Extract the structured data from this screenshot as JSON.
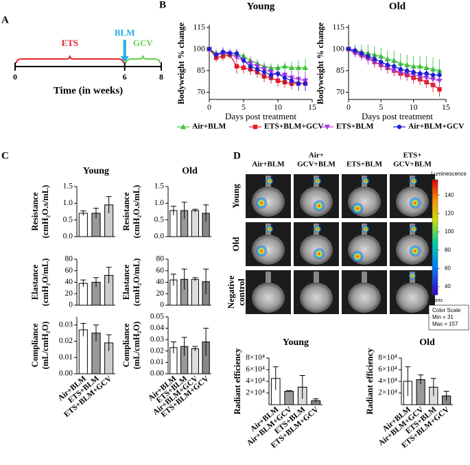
{
  "panel_labels": [
    "A",
    "B",
    "C",
    "D"
  ],
  "timeline": {
    "xlim": [
      0,
      8
    ],
    "ticks": [
      0,
      6,
      8
    ],
    "xlabel": "Time (in weeks)",
    "phases": [
      {
        "name": "ETS",
        "start": 0,
        "end": 6,
        "color": "#e3262b"
      },
      {
        "name": "GCV",
        "start": 6,
        "end": 8,
        "color": "#5fcf4a"
      }
    ],
    "arrow": {
      "name": "BLM",
      "at": 6,
      "color": "#29abe2"
    }
  },
  "imaging": {
    "columns": [
      [
        "Air+BLM"
      ],
      [
        "Air+",
        "GCV+BLM"
      ],
      [
        "ETS+BLM"
      ],
      [
        "ETS+",
        "GCV+BLM"
      ]
    ],
    "rows": [
      [
        "Young"
      ],
      [
        "Old"
      ],
      [
        "Negative",
        "control"
      ]
    ],
    "colorbar": {
      "title": "Luminescence",
      "unit": "Counts",
      "ticks": [
        40,
        60,
        80,
        100,
        120,
        140
      ],
      "label": "Color Scale",
      "min": {
        "value": 31,
        "label": "Min = 31"
      },
      "max": {
        "value": 157,
        "label": "Max = 157"
      }
    }
  },
  "chart_data": [
    {
      "type": "line",
      "title": "Young",
      "xlabel": "Days post treatment",
      "ylabel": "Bodyweight % change",
      "x": [
        0,
        1,
        2,
        3,
        4,
        5,
        6,
        7,
        8,
        9,
        10,
        11,
        12,
        13,
        14
      ],
      "xlim": [
        0,
        15
      ],
      "xticks": [
        0,
        5,
        10,
        15
      ],
      "ylim": [
        65,
        115
      ],
      "yticks": [
        70,
        85,
        100,
        115
      ],
      "series": [
        {
          "name": "Air+BLM",
          "color": "#3ec63e",
          "marker": "triangle-up",
          "values": [
            100,
            97,
            96,
            97,
            97,
            95,
            92,
            90,
            88,
            87,
            87,
            88,
            87,
            87,
            87
          ],
          "errors": [
            1,
            3,
            3,
            3,
            3,
            3,
            3,
            3,
            3,
            3,
            3,
            3,
            4,
            5,
            6
          ]
        },
        {
          "name": "ETS+BLM+GCV",
          "color": "#e31a1c",
          "marker": "square",
          "values": [
            100,
            94,
            95,
            96,
            88,
            87,
            86,
            84,
            81,
            80,
            78,
            77,
            76,
            76,
            76
          ],
          "errors": [
            1,
            3,
            3,
            3,
            5,
            4,
            4,
            4,
            4,
            4,
            4,
            4,
            4,
            5,
            5
          ]
        },
        {
          "name": "ETS+BLM",
          "color": "#b040e0",
          "marker": "triangle-down",
          "values": [
            100,
            96,
            97,
            97,
            94,
            92,
            90,
            88,
            86,
            84,
            82,
            82,
            80,
            79,
            78
          ],
          "errors": [
            1,
            3,
            3,
            3,
            4,
            4,
            4,
            4,
            4,
            4,
            4,
            4,
            5,
            5,
            6
          ]
        },
        {
          "name": "Air+BLM+GCV",
          "color": "#1f1fd6",
          "marker": "circle",
          "values": [
            100,
            96,
            98,
            97,
            97,
            92,
            88,
            86,
            84,
            82,
            83,
            80,
            78,
            76,
            76
          ],
          "errors": [
            1,
            3,
            3,
            3,
            3,
            4,
            4,
            4,
            4,
            4,
            4,
            4,
            4,
            5,
            5
          ]
        }
      ]
    },
    {
      "type": "line",
      "title": "Old",
      "xlabel": "Days post treatment",
      "ylabel": "Bodyweight % change",
      "x": [
        0,
        1,
        2,
        3,
        4,
        5,
        6,
        7,
        8,
        9,
        10,
        11,
        12,
        13,
        14
      ],
      "xlim": [
        0,
        15
      ],
      "xticks": [
        0,
        5,
        10,
        15
      ],
      "ylim": [
        65,
        115
      ],
      "yticks": [
        70,
        85,
        100,
        115
      ],
      "series": [
        {
          "name": "Air+BLM",
          "color": "#3ec63e",
          "marker": "triangle-up",
          "values": [
            100,
            99,
            98,
            97,
            96,
            95,
            93,
            92,
            90,
            89,
            88,
            88,
            87,
            86,
            85
          ],
          "errors": [
            1,
            4,
            5,
            6,
            6,
            6,
            6,
            7,
            7,
            7,
            7,
            7,
            8,
            8,
            8
          ]
        },
        {
          "name": "ETS+BLM+GCV",
          "color": "#e31a1c",
          "marker": "square",
          "values": [
            100,
            98,
            96,
            94,
            91,
            89,
            87,
            85,
            83,
            82,
            80,
            79,
            77,
            75,
            72
          ],
          "errors": [
            1,
            3,
            3,
            3,
            4,
            4,
            4,
            4,
            4,
            4,
            4,
            4,
            4,
            5,
            5
          ]
        },
        {
          "name": "ETS+BLM",
          "color": "#b040e0",
          "marker": "triangle-down",
          "values": [
            100,
            97,
            95,
            93,
            91,
            89,
            87,
            85,
            84,
            83,
            82,
            81,
            80,
            79,
            78
          ],
          "errors": [
            1,
            3,
            3,
            4,
            4,
            4,
            4,
            4,
            4,
            4,
            4,
            4,
            5,
            5,
            5
          ]
        },
        {
          "name": "Air+BLM+GCV",
          "color": "#1f1fd6",
          "marker": "circle",
          "values": [
            100,
            99,
            97,
            95,
            93,
            91,
            89,
            88,
            86,
            85,
            84,
            83,
            83,
            82,
            82
          ],
          "errors": [
            1,
            3,
            3,
            3,
            3,
            3,
            3,
            3,
            3,
            3,
            3,
            3,
            3,
            3,
            3
          ]
        }
      ]
    },
    {
      "type": "bar",
      "title": "Young",
      "ylabel": [
        "Resistance",
        "(cmH₂O.s/mL)"
      ],
      "categories": [
        null,
        null,
        null
      ],
      "values": [
        0.7,
        0.7,
        0.95
      ],
      "errors": [
        0.07,
        0.15,
        0.25
      ],
      "colors": [
        "#ffffff",
        "#999999",
        "#cccccc"
      ],
      "ylim": [
        0,
        1.5
      ],
      "yticks": [
        {
          "value": 0,
          "label": "0.0"
        },
        {
          "value": 0.5,
          "label": "0.5"
        },
        {
          "value": 1,
          "label": "1.0"
        },
        {
          "value": 1.5,
          "label": "1.5"
        }
      ]
    },
    {
      "type": "bar",
      "title": "Old",
      "ylabel": [
        "Resistance",
        "(cmH₂O.s/mL)"
      ],
      "categories": [
        null,
        null,
        null,
        null
      ],
      "values": [
        0.78,
        0.78,
        0.78,
        0.7
      ],
      "errors": [
        0.13,
        0.25,
        0.04,
        0.25
      ],
      "colors": [
        "#ffffff",
        "#999999",
        "#dddddd",
        "#888888"
      ],
      "ylim": [
        0,
        1.5
      ],
      "yticks": [
        {
          "value": 0,
          "label": "0.0"
        },
        {
          "value": 0.5,
          "label": "0.5"
        },
        {
          "value": 1,
          "label": "1.0"
        },
        {
          "value": 1.5,
          "label": "1.5"
        }
      ]
    },
    {
      "type": "bar",
      "ylabel": [
        "Elastance",
        "(cmH₂O/mL)"
      ],
      "categories": [
        null,
        null,
        null
      ],
      "values": [
        38,
        40,
        52
      ],
      "errors": [
        6,
        8,
        14
      ],
      "colors": [
        "#ffffff",
        "#999999",
        "#cccccc"
      ],
      "ylim": [
        0,
        80
      ],
      "yticks": [
        0,
        20,
        40,
        60,
        80
      ]
    },
    {
      "type": "bar",
      "ylabel": [
        "Elastance",
        "(cmH₂O/mL)"
      ],
      "categories": [
        null,
        null,
        null,
        null
      ],
      "values": [
        44,
        45,
        45,
        41
      ],
      "errors": [
        10,
        18,
        3,
        22
      ],
      "colors": [
        "#ffffff",
        "#999999",
        "#dddddd",
        "#888888"
      ],
      "ylim": [
        0,
        80
      ],
      "yticks": [
        0,
        20,
        40,
        60,
        80
      ]
    },
    {
      "type": "bar",
      "ylabel": [
        "Compliance",
        "(mL/cmH₂O)"
      ],
      "categories": [
        "Air+BLM",
        "ETS+BLM",
        "ETS+BLM+GCV"
      ],
      "values": [
        0.027,
        0.025,
        0.019
      ],
      "errors": [
        0.004,
        0.005,
        0.005
      ],
      "colors": [
        "#ffffff",
        "#999999",
        "#cccccc"
      ],
      "ylim": [
        0,
        0.035
      ],
      "yticks": [
        {
          "value": 0,
          "label": "0.00"
        },
        {
          "value": 0.01,
          "label": "0.01"
        },
        {
          "value": 0.02,
          "label": "0.02"
        },
        {
          "value": 0.03,
          "label": "0.03"
        }
      ]
    },
    {
      "type": "bar",
      "ylabel": [
        "Compliance",
        "(mL/cmH₂O)"
      ],
      "categories": [
        "Air+BLM",
        "ETS+BLM",
        "Air+BLM+GCV",
        "ETS+BLM+GCV"
      ],
      "values": [
        0.023,
        0.024,
        0.022,
        0.028
      ],
      "errors": [
        0.005,
        0.008,
        0.002,
        0.012
      ],
      "colors": [
        "#ffffff",
        "#999999",
        "#dddddd",
        "#888888"
      ],
      "ylim": [
        0,
        0.05
      ],
      "yticks": [
        {
          "value": 0,
          "label": "0.00"
        },
        {
          "value": 0.01,
          "label": "0.01"
        },
        {
          "value": 0.02,
          "label": "0.02"
        },
        {
          "value": 0.03,
          "label": "0.03"
        },
        {
          "value": 0.04,
          "label": "0.04"
        },
        {
          "value": 0.05,
          "label": "0.05"
        }
      ]
    },
    {
      "type": "bar",
      "title": "Young",
      "ylabel": [
        "Radiant efficiency"
      ],
      "categories": [
        "Air+BLM",
        "Air+BLM+GCV",
        "ETS+BLM",
        "ETS+BLM+GCV"
      ],
      "values": [
        45000,
        23000,
        30000,
        7000
      ],
      "errors": [
        20000,
        1000,
        20000,
        3000
      ],
      "colors": [
        "#ffffff",
        "#999999",
        "#dddddd",
        "#888888"
      ],
      "ylim": [
        0,
        80000
      ],
      "yticks": [
        {
          "value": 20000,
          "label": "2×10⁴"
        },
        {
          "value": 40000,
          "label": "4×10⁴"
        },
        {
          "value": 60000,
          "label": "6×10⁴"
        },
        {
          "value": 80000,
          "label": "8×10⁴"
        }
      ]
    },
    {
      "type": "bar",
      "title": "Old",
      "ylabel": [
        "Radiant efficiency"
      ],
      "categories": [
        "Air+BLM",
        "Air+BLM+GCV",
        "ETS+BLM",
        "ETS+BLM+GCV"
      ],
      "values": [
        40000,
        43000,
        30000,
        15000
      ],
      "errors": [
        25000,
        8000,
        15000,
        8000
      ],
      "colors": [
        "#ffffff",
        "#999999",
        "#dddddd",
        "#888888"
      ],
      "ylim": [
        0,
        80000
      ],
      "yticks": [
        {
          "value": 20000,
          "label": "2×10⁴"
        },
        {
          "value": 40000,
          "label": "4×10⁴"
        },
        {
          "value": 60000,
          "label": "6×10⁴"
        },
        {
          "value": 80000,
          "label": "8×10⁴"
        }
      ]
    }
  ]
}
